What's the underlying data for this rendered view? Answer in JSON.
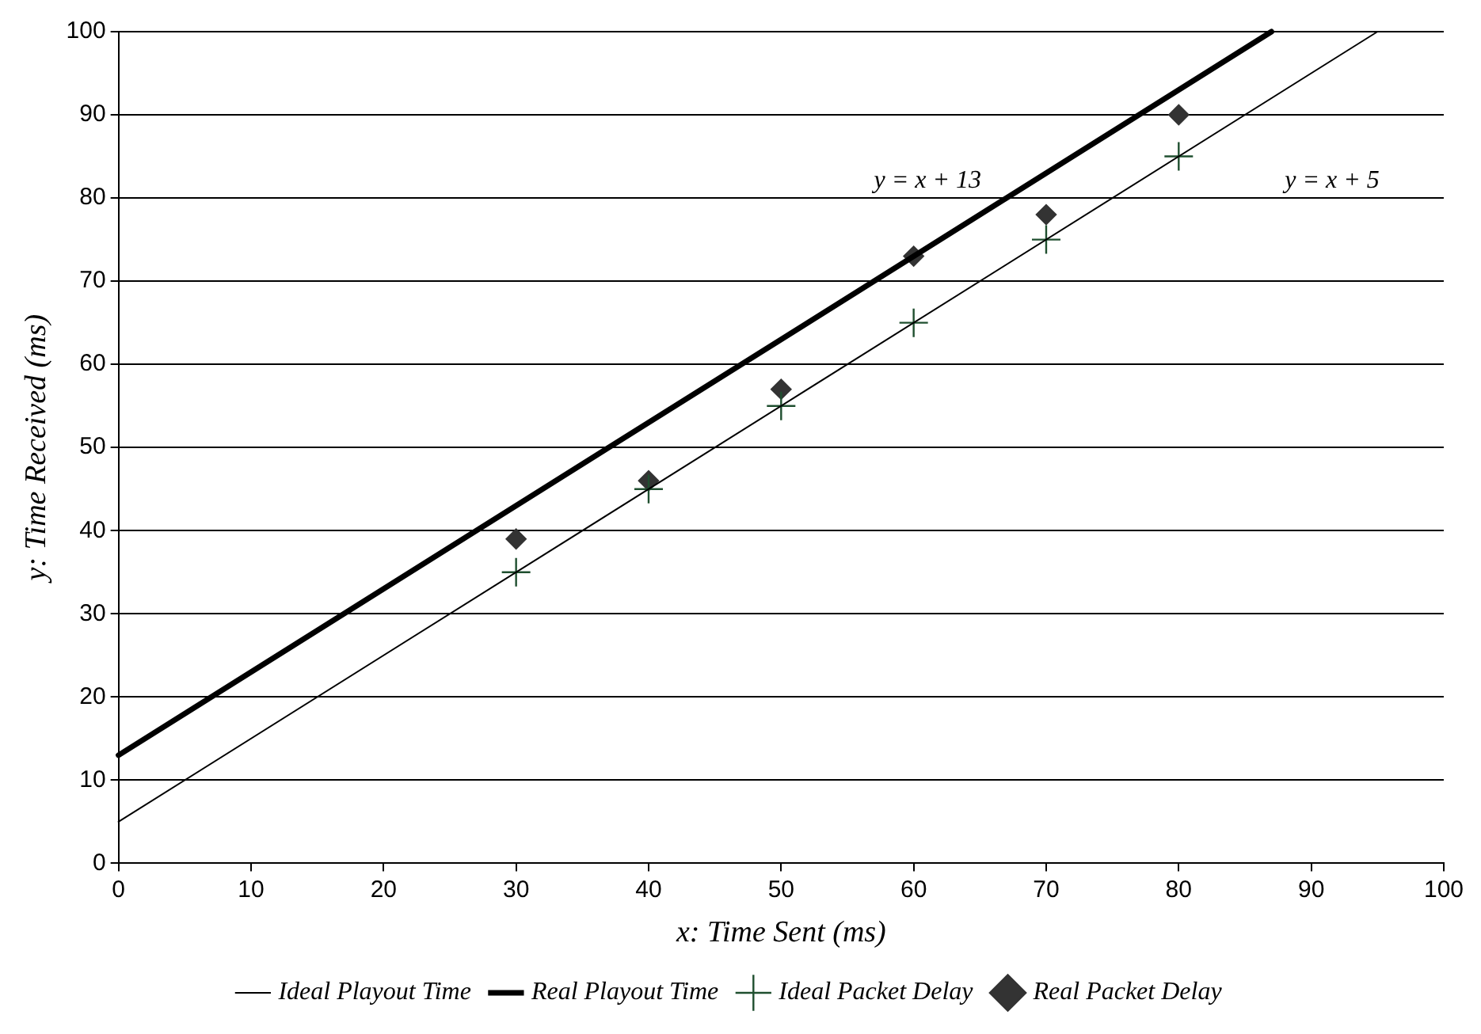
{
  "chart_data": {
    "type": "line",
    "xlabel": "x: Time Sent (ms)",
    "ylabel": "y: Time Received (ms)",
    "xlim": [
      0,
      100
    ],
    "xticks": [
      0,
      10,
      20,
      30,
      40,
      50,
      60,
      70,
      80,
      90,
      100
    ],
    "ylim": [
      0,
      100
    ],
    "yticks": [
      0,
      10,
      20,
      30,
      40,
      50,
      60,
      70,
      80,
      90,
      100
    ],
    "grid": "y",
    "legend": "bottom",
    "series": [
      {
        "name": "Ideal Playout Time",
        "type": "line",
        "color": "#000000",
        "marker": "none",
        "line_style": "solid",
        "x": [
          0,
          95
        ],
        "values": [
          5,
          100
        ]
      },
      {
        "name": "Real Playout Time",
        "type": "line",
        "color": "#000000",
        "marker": "none",
        "line_style": "solid",
        "x": [
          0,
          87
        ],
        "values": [
          13,
          100
        ]
      },
      {
        "name": "Ideal Packet Delay",
        "type": "scatter",
        "color": "#1f4f2f",
        "marker": "cross",
        "x": [
          30,
          40,
          50,
          60,
          70,
          80
        ],
        "values": [
          35,
          45,
          55,
          65,
          75,
          85
        ]
      },
      {
        "name": "Real Packet Delay",
        "type": "scatter",
        "color": "#333333",
        "marker": "diamond",
        "x": [
          30,
          40,
          50,
          60,
          70,
          80
        ],
        "values": [
          39,
          46,
          57,
          73,
          78,
          90
        ]
      }
    ],
    "annotations": [
      "y = x + 13",
      "y = x + 5"
    ]
  }
}
